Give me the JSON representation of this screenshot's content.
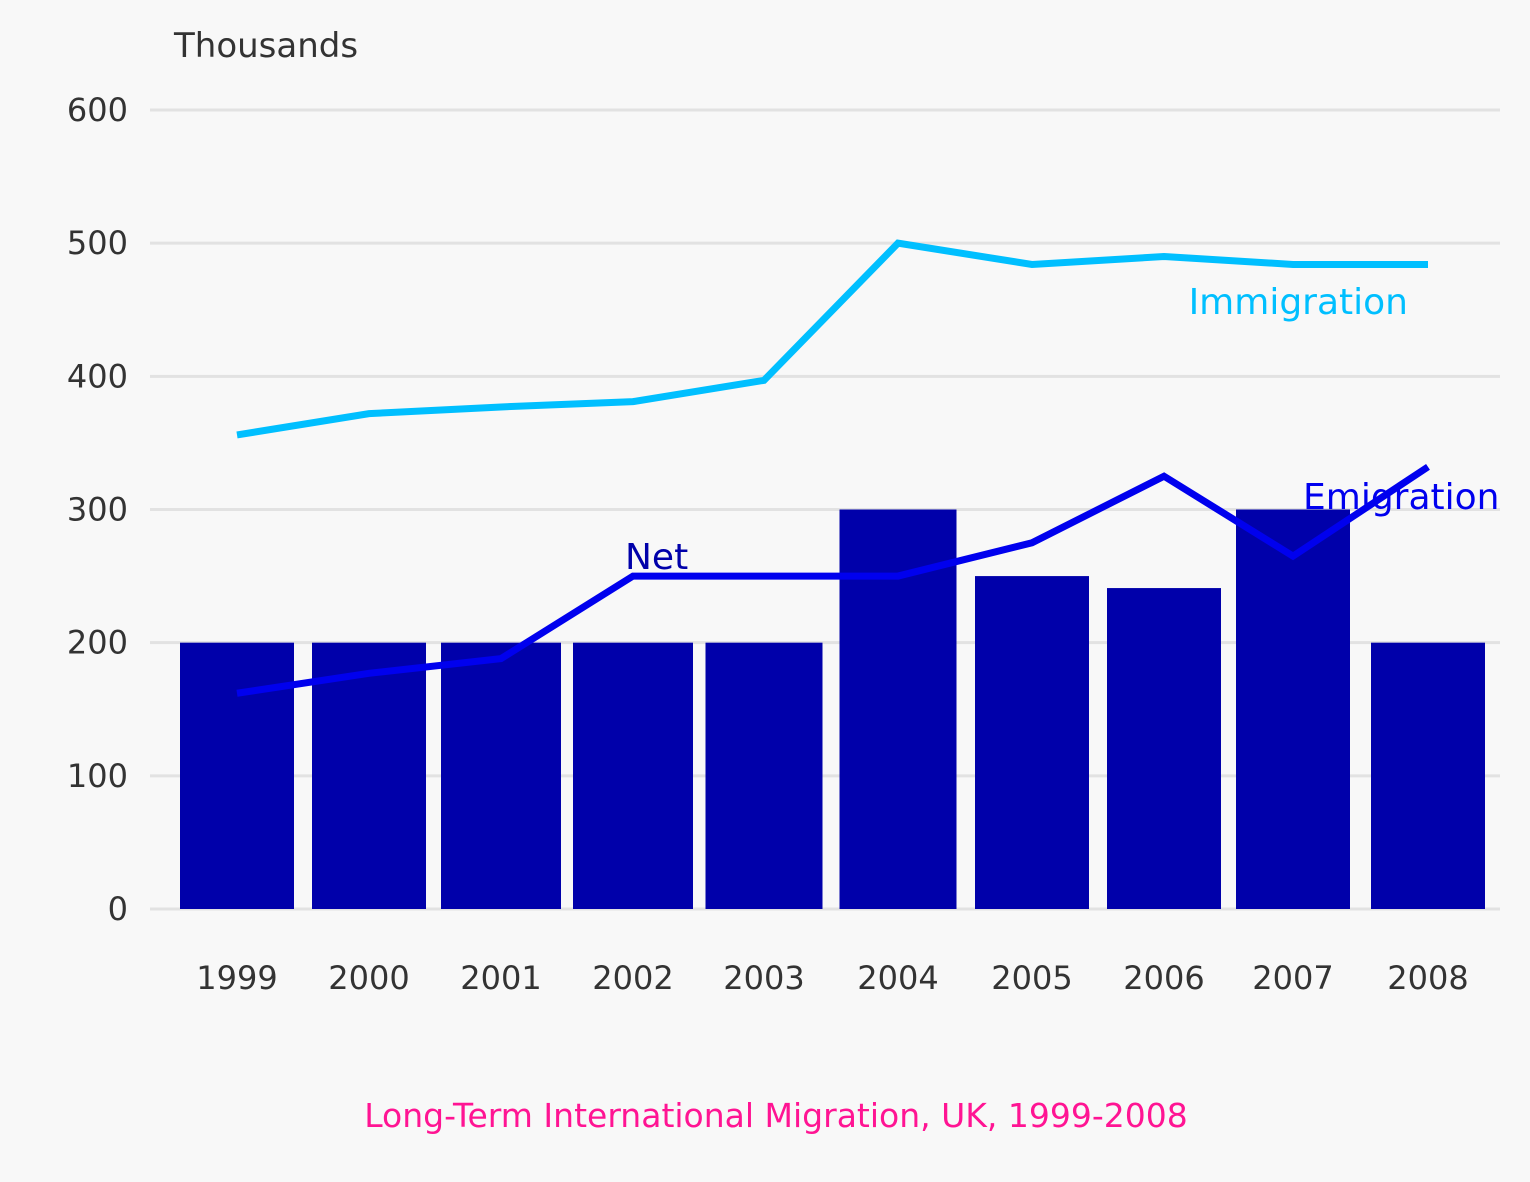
{
  "chart_data": {
    "type": "bar",
    "title": "Long-Term International Migration, UK, 1999-2008",
    "ylabel": "Thousands",
    "xlabel": "",
    "ylim": [
      0,
      600
    ],
    "yticks": [
      "0",
      "100",
      "200",
      "300",
      "400",
      "500",
      "600"
    ],
    "grid": true,
    "categories": [
      "1999",
      "2000",
      "2001",
      "2002",
      "2003",
      "2004",
      "2005",
      "2006",
      "2007",
      "2008"
    ],
    "series": [
      {
        "name": "Net",
        "type": "bar",
        "color": "#0000aa",
        "values": [
          200,
          200,
          200,
          200,
          200,
          300,
          250,
          241,
          300,
          200
        ]
      },
      {
        "name": "Immigration",
        "type": "line",
        "color": "#00bfff",
        "values": [
          356,
          372,
          377,
          381,
          397,
          500,
          484,
          490,
          484,
          484
        ]
      },
      {
        "name": "Emigration",
        "type": "line",
        "color": "#0000ee",
        "values": [
          162,
          177,
          188,
          250,
          250,
          250,
          275,
          325,
          265,
          332
        ]
      }
    ],
    "title_color": "#ff1493",
    "label_colors": {
      "net": "#0000aa",
      "immigration": "#00bfff",
      "emigration": "#0000ee"
    }
  }
}
